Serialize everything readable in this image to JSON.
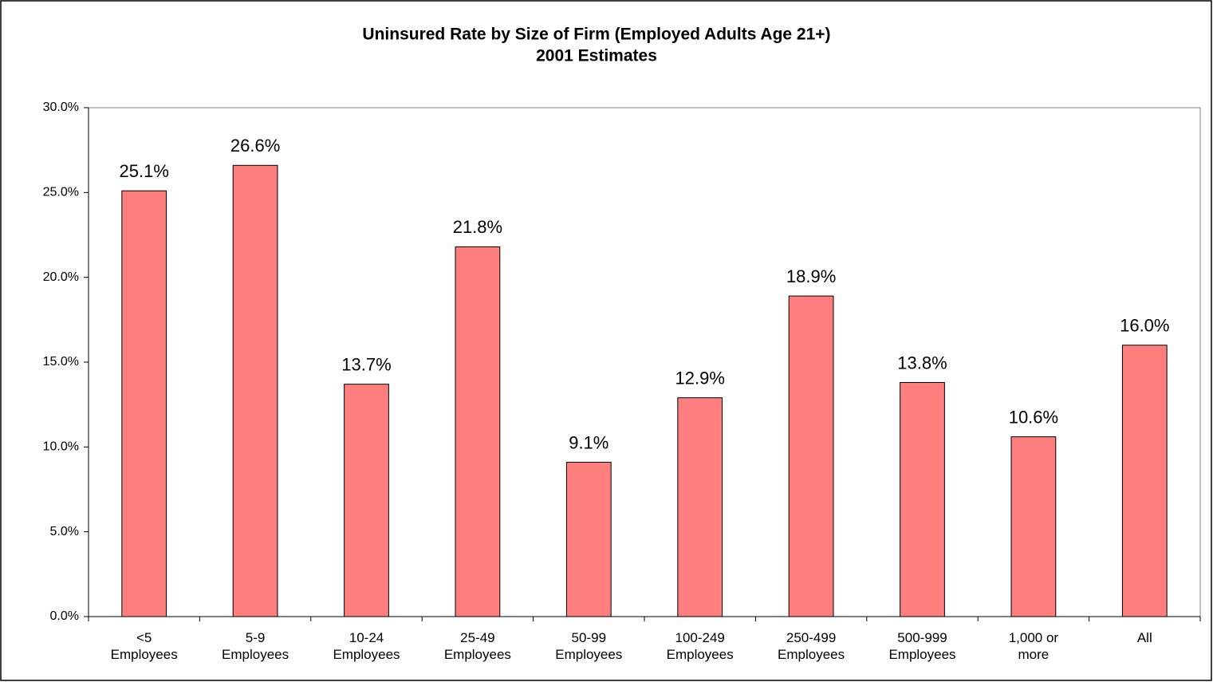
{
  "chart_data": {
    "type": "bar",
    "title": "Uninsured Rate by Size of Firm (Employed Adults Age 21+)",
    "subtitle": "2001 Estimates",
    "categories": [
      "<5\nEmployees",
      "5-9\nEmployees",
      "10-24\nEmployees",
      "25-49\nEmployees",
      "50-99\nEmployees",
      "100-249\nEmployees",
      "250-499\nEmployees",
      "500-999\nEmployees",
      "1,000 or\nmore",
      "All"
    ],
    "values": [
      25.1,
      26.6,
      13.7,
      21.8,
      9.1,
      12.9,
      18.9,
      13.8,
      10.6,
      16.0
    ],
    "value_labels": [
      "25.1%",
      "26.6%",
      "13.7%",
      "21.8%",
      "9.1%",
      "12.9%",
      "18.9%",
      "13.8%",
      "10.6%",
      "16.0%"
    ],
    "color": "#ff7f7f",
    "ylim": [
      0,
      30
    ],
    "yticks": [
      {
        "value": 0,
        "label": "0.0%"
      },
      {
        "value": 5,
        "label": "5.0%"
      },
      {
        "value": 10,
        "label": "10.0%"
      },
      {
        "value": 15,
        "label": "15.0%"
      },
      {
        "value": 20,
        "label": "20.0%"
      },
      {
        "value": 25,
        "label": "25.0%"
      },
      {
        "value": 30,
        "label": "30.0%"
      }
    ],
    "grid": false
  }
}
